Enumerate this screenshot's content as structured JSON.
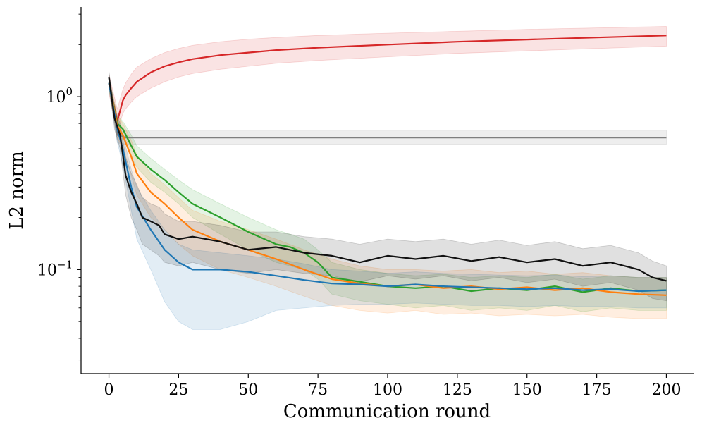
{
  "chart_data": {
    "type": "line",
    "title": "",
    "xlabel": "Communication round",
    "ylabel": "L2 norm",
    "xlim": [
      -10,
      210
    ],
    "ylim": [
      0.025,
      3.3
    ],
    "yscale": "log",
    "grid": false,
    "legend": "none",
    "x_ticks": [
      0,
      25,
      50,
      75,
      100,
      125,
      150,
      175,
      200
    ],
    "x_tick_labels": [
      "0",
      "25",
      "50",
      "75",
      "100",
      "125",
      "150",
      "175",
      "200"
    ],
    "y_ticks": [
      {
        "value": 1.0,
        "base": "10",
        "exp": "0"
      },
      {
        "value": 0.1,
        "base": "10",
        "exp": "−1"
      }
    ],
    "series": [
      {
        "name": "red",
        "color": "#d62728",
        "x": [
          0,
          3,
          5,
          6,
          8,
          10,
          15,
          20,
          25,
          30,
          40,
          50,
          60,
          75,
          100,
          125,
          150,
          175,
          200
        ],
        "y": [
          1.2,
          0.72,
          0.95,
          1.02,
          1.12,
          1.22,
          1.38,
          1.5,
          1.58,
          1.65,
          1.74,
          1.8,
          1.86,
          1.92,
          2.0,
          2.08,
          2.14,
          2.2,
          2.26
        ],
        "upper": [
          1.35,
          0.85,
          1.1,
          1.2,
          1.35,
          1.48,
          1.66,
          1.8,
          1.9,
          1.98,
          2.08,
          2.15,
          2.2,
          2.26,
          2.33,
          2.39,
          2.45,
          2.5,
          2.55
        ],
        "lower": [
          1.05,
          0.62,
          0.8,
          0.85,
          0.93,
          1.0,
          1.12,
          1.22,
          1.3,
          1.36,
          1.44,
          1.5,
          1.56,
          1.62,
          1.7,
          1.78,
          1.84,
          1.9,
          1.96
        ]
      },
      {
        "name": "gray",
        "color": "#7f7f7f",
        "x": [
          0,
          3,
          6,
          10,
          25,
          50,
          75,
          100,
          125,
          150,
          175,
          200
        ],
        "y": [
          1.3,
          0.6,
          0.58,
          0.58,
          0.58,
          0.58,
          0.58,
          0.58,
          0.58,
          0.58,
          0.58,
          0.58
        ],
        "upper": [
          1.4,
          0.68,
          0.64,
          0.64,
          0.64,
          0.64,
          0.64,
          0.64,
          0.64,
          0.64,
          0.64,
          0.64
        ],
        "lower": [
          1.2,
          0.54,
          0.53,
          0.53,
          0.53,
          0.53,
          0.53,
          0.53,
          0.53,
          0.53,
          0.53,
          0.53
        ]
      },
      {
        "name": "green",
        "color": "#2ca02c",
        "x": [
          0,
          3,
          5,
          8,
          10,
          15,
          20,
          25,
          30,
          40,
          50,
          60,
          65,
          70,
          75,
          80,
          90,
          100,
          110,
          120,
          130,
          140,
          150,
          160,
          170,
          180,
          190,
          200
        ],
        "y": [
          1.2,
          0.7,
          0.65,
          0.52,
          0.45,
          0.38,
          0.33,
          0.28,
          0.24,
          0.2,
          0.165,
          0.14,
          0.135,
          0.125,
          0.11,
          0.09,
          0.085,
          0.08,
          0.078,
          0.08,
          0.075,
          0.078,
          0.076,
          0.08,
          0.074,
          0.078,
          0.075,
          0.076
        ],
        "upper": [
          1.3,
          0.78,
          0.72,
          0.6,
          0.52,
          0.44,
          0.38,
          0.33,
          0.29,
          0.24,
          0.2,
          0.17,
          0.16,
          0.15,
          0.13,
          0.11,
          0.1,
          0.095,
          0.092,
          0.094,
          0.09,
          0.092,
          0.09,
          0.094,
          0.088,
          0.092,
          0.09,
          0.09
        ],
        "lower": [
          1.1,
          0.62,
          0.58,
          0.45,
          0.39,
          0.32,
          0.28,
          0.24,
          0.2,
          0.16,
          0.13,
          0.11,
          0.105,
          0.1,
          0.088,
          0.072,
          0.066,
          0.063,
          0.06,
          0.062,
          0.058,
          0.06,
          0.058,
          0.062,
          0.057,
          0.06,
          0.058,
          0.058
        ]
      },
      {
        "name": "orange",
        "color": "#ff7f0e",
        "x": [
          0,
          3,
          5,
          8,
          10,
          15,
          20,
          25,
          30,
          40,
          50,
          60,
          70,
          80,
          90,
          100,
          110,
          120,
          130,
          140,
          150,
          160,
          170,
          180,
          190,
          200
        ],
        "y": [
          1.2,
          0.68,
          0.6,
          0.45,
          0.36,
          0.28,
          0.24,
          0.2,
          0.17,
          0.145,
          0.13,
          0.115,
          0.1,
          0.088,
          0.083,
          0.08,
          0.082,
          0.078,
          0.08,
          0.077,
          0.079,
          0.076,
          0.078,
          0.074,
          0.072,
          0.071
        ],
        "upper": [
          1.3,
          0.78,
          0.7,
          0.56,
          0.46,
          0.36,
          0.31,
          0.26,
          0.22,
          0.19,
          0.17,
          0.15,
          0.13,
          0.115,
          0.105,
          0.1,
          0.1,
          0.098,
          0.1,
          0.096,
          0.098,
          0.094,
          0.096,
          0.092,
          0.09,
          0.09
        ],
        "lower": [
          1.1,
          0.58,
          0.5,
          0.35,
          0.27,
          0.2,
          0.17,
          0.14,
          0.12,
          0.1,
          0.09,
          0.08,
          0.07,
          0.062,
          0.058,
          0.056,
          0.058,
          0.055,
          0.056,
          0.054,
          0.055,
          0.054,
          0.055,
          0.053,
          0.052,
          0.052
        ]
      },
      {
        "name": "blue",
        "color": "#1f77b4",
        "x": [
          0,
          3,
          5,
          8,
          10,
          15,
          20,
          25,
          30,
          40,
          50,
          60,
          70,
          80,
          90,
          100,
          110,
          120,
          130,
          140,
          150,
          160,
          170,
          180,
          190,
          200
        ],
        "y": [
          1.2,
          0.65,
          0.5,
          0.3,
          0.23,
          0.17,
          0.13,
          0.11,
          0.1,
          0.1,
          0.097,
          0.092,
          0.087,
          0.083,
          0.082,
          0.08,
          0.082,
          0.08,
          0.079,
          0.078,
          0.077,
          0.078,
          0.076,
          0.077,
          0.075,
          0.076
        ],
        "upper": [
          1.3,
          0.75,
          0.6,
          0.38,
          0.3,
          0.22,
          0.17,
          0.14,
          0.13,
          0.125,
          0.12,
          0.115,
          0.108,
          0.1,
          0.098,
          0.095,
          0.097,
          0.095,
          0.094,
          0.093,
          0.092,
          0.093,
          0.091,
          0.092,
          0.09,
          0.09
        ],
        "lower": [
          1.1,
          0.55,
          0.4,
          0.22,
          0.15,
          0.1,
          0.065,
          0.05,
          0.045,
          0.045,
          0.05,
          0.058,
          0.06,
          0.062,
          0.063,
          0.063,
          0.064,
          0.063,
          0.062,
          0.062,
          0.061,
          0.062,
          0.061,
          0.061,
          0.06,
          0.06
        ]
      },
      {
        "name": "black",
        "color": "#111111",
        "x": [
          0,
          2,
          4,
          6,
          8,
          10,
          12,
          15,
          18,
          20,
          25,
          30,
          40,
          50,
          60,
          70,
          80,
          90,
          100,
          110,
          120,
          130,
          140,
          150,
          160,
          170,
          180,
          190,
          195,
          200
        ],
        "y": [
          1.3,
          0.75,
          0.6,
          0.35,
          0.28,
          0.24,
          0.2,
          0.19,
          0.18,
          0.16,
          0.15,
          0.155,
          0.145,
          0.13,
          0.135,
          0.125,
          0.12,
          0.11,
          0.12,
          0.115,
          0.12,
          0.112,
          0.118,
          0.11,
          0.115,
          0.105,
          0.11,
          0.1,
          0.09,
          0.086
        ],
        "upper": [
          1.4,
          0.85,
          0.7,
          0.45,
          0.36,
          0.31,
          0.26,
          0.24,
          0.23,
          0.21,
          0.19,
          0.19,
          0.18,
          0.165,
          0.165,
          0.155,
          0.15,
          0.14,
          0.15,
          0.145,
          0.15,
          0.14,
          0.148,
          0.138,
          0.145,
          0.132,
          0.138,
          0.125,
          0.112,
          0.105
        ],
        "lower": [
          1.2,
          0.65,
          0.5,
          0.27,
          0.2,
          0.17,
          0.14,
          0.13,
          0.12,
          0.11,
          0.105,
          0.11,
          0.1,
          0.095,
          0.1,
          0.095,
          0.092,
          0.085,
          0.092,
          0.088,
          0.092,
          0.086,
          0.09,
          0.084,
          0.088,
          0.08,
          0.084,
          0.076,
          0.068,
          0.066
        ]
      }
    ]
  }
}
